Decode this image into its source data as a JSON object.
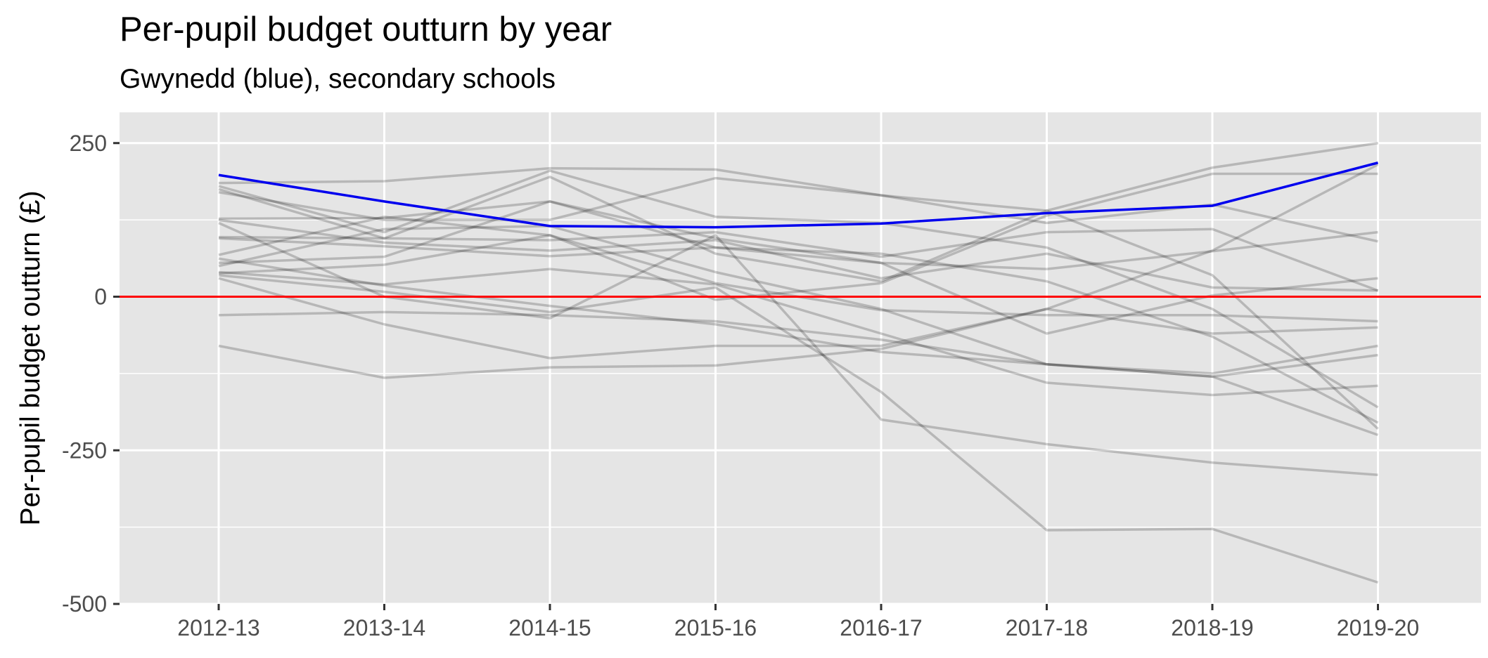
{
  "chart_data": {
    "type": "line",
    "title": "Per-pupil budget outturn by year",
    "subtitle": "Gwynedd (blue), secondary schools",
    "xlabel": "",
    "ylabel": "Per-pupil budget outturn (£)",
    "categories": [
      "2012-13",
      "2013-14",
      "2014-15",
      "2015-16",
      "2016-17",
      "2017-18",
      "2018-19",
      "2019-20"
    ],
    "ylim": [
      -500,
      250
    ],
    "y_ticks": [
      250,
      0,
      -250,
      -500
    ],
    "y_tick_labels": [
      "250",
      "0",
      "-250",
      "-500"
    ],
    "grid": true,
    "reference_line": {
      "y": 0,
      "color": "#ff0000"
    },
    "highlight": {
      "name": "Gwynedd",
      "color": "#0000ee",
      "values": [
        198,
        155,
        115,
        113,
        119,
        136,
        148,
        218
      ]
    },
    "series_color": "#000000",
    "series": [
      {
        "values": [
          185,
          188,
          209,
          207,
          165,
          120,
          150,
          90
        ]
      },
      {
        "values": [
          180,
          105,
          205,
          130,
          120,
          80,
          -20,
          -180
        ]
      },
      {
        "values": [
          175,
          95,
          195,
          70,
          25,
          140,
          210,
          250
        ]
      },
      {
        "values": [
          170,
          125,
          125,
          193,
          165,
          140,
          35,
          -215
        ]
      },
      {
        "values": [
          127,
          128,
          155,
          80,
          70,
          25,
          -65,
          -205
        ]
      },
      {
        "values": [
          125,
          88,
          75,
          92,
          30,
          70,
          15,
          10
        ]
      },
      {
        "values": [
          97,
          95,
          92,
          105,
          65,
          105,
          110,
          10
        ]
      },
      {
        "values": [
          95,
          82,
          66,
          80,
          55,
          45,
          74,
          105
        ]
      },
      {
        "values": [
          68,
          130,
          100,
          22,
          -22,
          -30,
          -30,
          -40
        ]
      },
      {
        "values": [
          62,
          18,
          -15,
          -45,
          -90,
          -110,
          -125,
          -80
        ]
      },
      {
        "values": [
          55,
          65,
          155,
          95,
          55,
          -60,
          2,
          30
        ]
      },
      {
        "values": [
          50,
          110,
          115,
          40,
          -20,
          -110,
          -130,
          -225
        ]
      },
      {
        "values": [
          40,
          20,
          45,
          20,
          -60,
          -140,
          -160,
          -145
        ]
      },
      {
        "values": [
          38,
          52,
          100,
          -5,
          22,
          132,
          200,
          200
        ]
      },
      {
        "values": [
          35,
          8,
          -25,
          15,
          -155,
          -380,
          -378,
          -465
        ]
      },
      {
        "values": [
          120,
          0,
          -35,
          100,
          -200,
          -240,
          -270,
          -290
        ]
      },
      {
        "values": [
          -30,
          -25,
          -30,
          -40,
          -70,
          -110,
          -130,
          -95
        ]
      },
      {
        "values": [
          -80,
          -132,
          -115,
          -112,
          -85,
          -20,
          -60,
          -50
        ]
      },
      {
        "values": [
          30,
          -45,
          -100,
          -80,
          -80,
          -20,
          75,
          215
        ]
      }
    ]
  }
}
